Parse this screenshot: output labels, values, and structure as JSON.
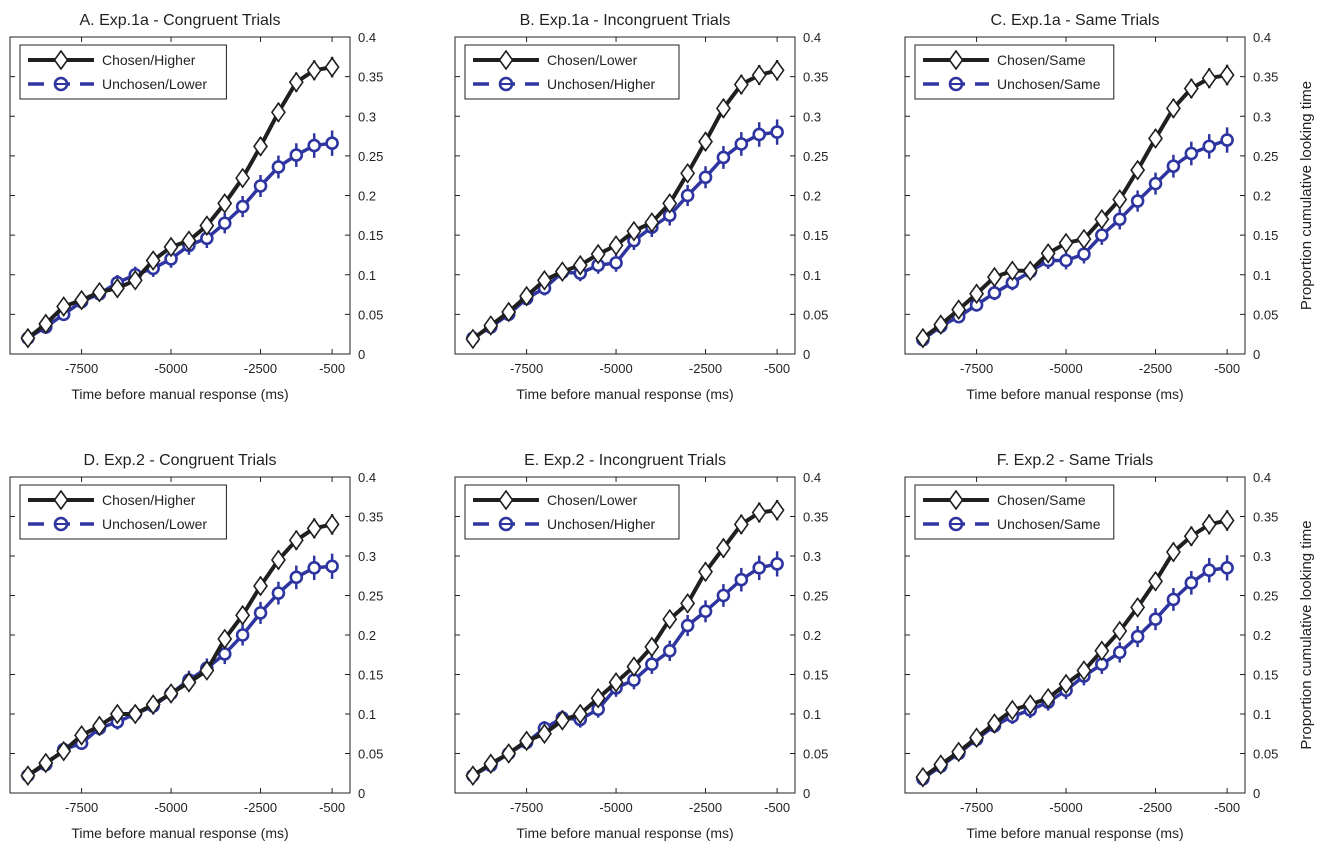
{
  "figure": {
    "row_ylabel": "Proportion cumulative looking time"
  },
  "colors": {
    "chosen": "#1f1f1f",
    "unchosen": "#2e35a0"
  },
  "chart_data": [
    {
      "type": "line",
      "title": "A. Exp.1a - Congruent Trials",
      "xlabel": "Time before manual response (ms)",
      "ylabel": "",
      "xlim": [
        -9500,
        0
      ],
      "ylim": [
        0,
        0.4
      ],
      "xticks": [
        -7500,
        -5000,
        -2500,
        -500
      ],
      "yticks": [
        0,
        0.05,
        0.1,
        0.15,
        0.2,
        0.25,
        0.3,
        0.35,
        0.4
      ],
      "grid": false,
      "legend": "top-left",
      "x": [
        -9000,
        -8500,
        -8000,
        -7500,
        -7000,
        -6500,
        -6000,
        -5500,
        -5000,
        -4500,
        -4000,
        -3500,
        -3000,
        -2500,
        -2000,
        -1500,
        -1000,
        -500
      ],
      "series": [
        {
          "name": "Chosen/Higher",
          "marker": "diamond",
          "style": "solid",
          "values": [
            0.02,
            0.038,
            0.06,
            0.068,
            0.078,
            0.083,
            0.093,
            0.118,
            0.135,
            0.143,
            0.162,
            0.19,
            0.222,
            0.262,
            0.305,
            0.343,
            0.358,
            0.362
          ]
        },
        {
          "name": "Unchosen/Lower",
          "marker": "circle",
          "style": "dashed",
          "values": [
            0.02,
            0.034,
            0.05,
            0.066,
            0.076,
            0.09,
            0.1,
            0.108,
            0.12,
            0.137,
            0.146,
            0.165,
            0.186,
            0.212,
            0.236,
            0.251,
            0.263,
            0.266
          ]
        }
      ]
    },
    {
      "type": "line",
      "title": "B. Exp.1a - Incongruent Trials",
      "xlabel": "Time before manual response (ms)",
      "ylabel": "",
      "xlim": [
        -9500,
        0
      ],
      "ylim": [
        0,
        0.4
      ],
      "xticks": [
        -7500,
        -5000,
        -2500,
        -500
      ],
      "yticks": [
        0,
        0.05,
        0.1,
        0.15,
        0.2,
        0.25,
        0.3,
        0.35,
        0.4
      ],
      "grid": false,
      "legend": "top-left",
      "x": [
        -9000,
        -8500,
        -8000,
        -7500,
        -7000,
        -6500,
        -6000,
        -5500,
        -5000,
        -4500,
        -4000,
        -3500,
        -3000,
        -2500,
        -2000,
        -1500,
        -1000,
        -500
      ],
      "series": [
        {
          "name": "Chosen/Lower",
          "marker": "diamond",
          "style": "solid",
          "values": [
            0.019,
            0.036,
            0.053,
            0.073,
            0.093,
            0.104,
            0.112,
            0.126,
            0.137,
            0.155,
            0.166,
            0.19,
            0.228,
            0.268,
            0.31,
            0.34,
            0.352,
            0.358
          ]
        },
        {
          "name": "Unchosen/Higher",
          "marker": "circle",
          "style": "dashed",
          "values": [
            0.02,
            0.034,
            0.05,
            0.07,
            0.083,
            0.103,
            0.102,
            0.112,
            0.115,
            0.143,
            0.16,
            0.175,
            0.2,
            0.223,
            0.248,
            0.265,
            0.277,
            0.28
          ]
        }
      ]
    },
    {
      "type": "line",
      "title": "C. Exp.1a - Same Trials",
      "xlabel": "Time before manual response (ms)",
      "ylabel": "Proportion cumulative looking time",
      "xlim": [
        -9500,
        0
      ],
      "ylim": [
        0,
        0.4
      ],
      "xticks": [
        -7500,
        -5000,
        -2500,
        -500
      ],
      "yticks": [
        0,
        0.05,
        0.1,
        0.15,
        0.2,
        0.25,
        0.3,
        0.35,
        0.4
      ],
      "grid": false,
      "legend": "top-left",
      "x": [
        -9000,
        -8500,
        -8000,
        -7500,
        -7000,
        -6500,
        -6000,
        -5500,
        -5000,
        -4500,
        -4000,
        -3500,
        -3000,
        -2500,
        -2000,
        -1500,
        -1000,
        -500
      ],
      "series": [
        {
          "name": "Chosen/Same",
          "marker": "diamond",
          "style": "solid",
          "values": [
            0.02,
            0.037,
            0.056,
            0.076,
            0.097,
            0.105,
            0.105,
            0.127,
            0.14,
            0.145,
            0.17,
            0.195,
            0.232,
            0.272,
            0.31,
            0.335,
            0.348,
            0.352
          ]
        },
        {
          "name": "Unchosen/Same",
          "marker": "circle",
          "style": "dashed",
          "values": [
            0.018,
            0.035,
            0.047,
            0.062,
            0.077,
            0.09,
            0.104,
            0.118,
            0.118,
            0.126,
            0.15,
            0.17,
            0.193,
            0.215,
            0.237,
            0.253,
            0.262,
            0.27
          ]
        }
      ]
    },
    {
      "type": "line",
      "title": "D. Exp.2 - Congruent Trials",
      "xlabel": "Time before manual response (ms)",
      "ylabel": "",
      "xlim": [
        -9500,
        0
      ],
      "ylim": [
        0,
        0.4
      ],
      "xticks": [
        -7500,
        -5000,
        -2500,
        -500
      ],
      "yticks": [
        0,
        0.05,
        0.1,
        0.15,
        0.2,
        0.25,
        0.3,
        0.35,
        0.4
      ],
      "grid": false,
      "legend": "top-left",
      "x": [
        -9000,
        -8500,
        -8000,
        -7500,
        -7000,
        -6500,
        -6000,
        -5500,
        -5000,
        -4500,
        -4000,
        -3500,
        -3000,
        -2500,
        -2000,
        -1500,
        -1000,
        -500
      ],
      "series": [
        {
          "name": "Chosen/Higher",
          "marker": "diamond",
          "style": "solid",
          "values": [
            0.022,
            0.038,
            0.053,
            0.073,
            0.085,
            0.1,
            0.1,
            0.112,
            0.126,
            0.14,
            0.155,
            0.195,
            0.225,
            0.262,
            0.295,
            0.32,
            0.335,
            0.34
          ]
        },
        {
          "name": "Unchosen/Lower",
          "marker": "circle",
          "style": "dashed",
          "values": [
            0.022,
            0.036,
            0.055,
            0.063,
            0.082,
            0.09,
            0.1,
            0.11,
            0.126,
            0.143,
            0.158,
            0.176,
            0.2,
            0.228,
            0.253,
            0.273,
            0.285,
            0.287
          ]
        }
      ]
    },
    {
      "type": "line",
      "title": "E. Exp.2 - Incongruent Trials",
      "xlabel": "Time before manual response (ms)",
      "ylabel": "",
      "xlim": [
        -9500,
        0
      ],
      "ylim": [
        0,
        0.4
      ],
      "xticks": [
        -7500,
        -5000,
        -2500,
        -500
      ],
      "yticks": [
        0,
        0.05,
        0.1,
        0.15,
        0.2,
        0.25,
        0.3,
        0.35,
        0.4
      ],
      "grid": false,
      "legend": "top-left",
      "x": [
        -9000,
        -8500,
        -8000,
        -7500,
        -7000,
        -6500,
        -6000,
        -5500,
        -5000,
        -4500,
        -4000,
        -3500,
        -3000,
        -2500,
        -2000,
        -1500,
        -1000,
        -500
      ],
      "series": [
        {
          "name": "Chosen/Lower",
          "marker": "diamond",
          "style": "solid",
          "values": [
            0.022,
            0.037,
            0.05,
            0.066,
            0.075,
            0.092,
            0.1,
            0.12,
            0.14,
            0.16,
            0.185,
            0.22,
            0.24,
            0.28,
            0.31,
            0.34,
            0.355,
            0.358
          ]
        },
        {
          "name": "Unchosen/Higher",
          "marker": "circle",
          "style": "dashed",
          "values": [
            0.022,
            0.035,
            0.05,
            0.064,
            0.082,
            0.095,
            0.093,
            0.106,
            0.133,
            0.143,
            0.163,
            0.18,
            0.212,
            0.23,
            0.25,
            0.27,
            0.285,
            0.29
          ]
        }
      ]
    },
    {
      "type": "line",
      "title": "F. Exp.2 - Same Trials",
      "xlabel": "Time before manual response (ms)",
      "ylabel": "Proportion cumulative looking time",
      "xlim": [
        -9500,
        0
      ],
      "ylim": [
        0,
        0.4
      ],
      "xticks": [
        -7500,
        -5000,
        -2500,
        -500
      ],
      "yticks": [
        0,
        0.05,
        0.1,
        0.15,
        0.2,
        0.25,
        0.3,
        0.35,
        0.4
      ],
      "grid": false,
      "legend": "top-left",
      "x": [
        -9000,
        -8500,
        -8000,
        -7500,
        -7000,
        -6500,
        -6000,
        -5500,
        -5000,
        -4500,
        -4000,
        -3500,
        -3000,
        -2500,
        -2000,
        -1500,
        -1000,
        -500
      ],
      "series": [
        {
          "name": "Chosen/Same",
          "marker": "diamond",
          "style": "solid",
          "values": [
            0.02,
            0.036,
            0.052,
            0.07,
            0.088,
            0.105,
            0.112,
            0.12,
            0.138,
            0.155,
            0.18,
            0.205,
            0.235,
            0.268,
            0.305,
            0.325,
            0.34,
            0.345
          ]
        },
        {
          "name": "Unchosen/Same",
          "marker": "circle",
          "style": "dashed",
          "values": [
            0.018,
            0.034,
            0.05,
            0.068,
            0.085,
            0.097,
            0.105,
            0.115,
            0.13,
            0.148,
            0.163,
            0.178,
            0.198,
            0.22,
            0.245,
            0.266,
            0.282,
            0.285
          ]
        }
      ]
    }
  ]
}
